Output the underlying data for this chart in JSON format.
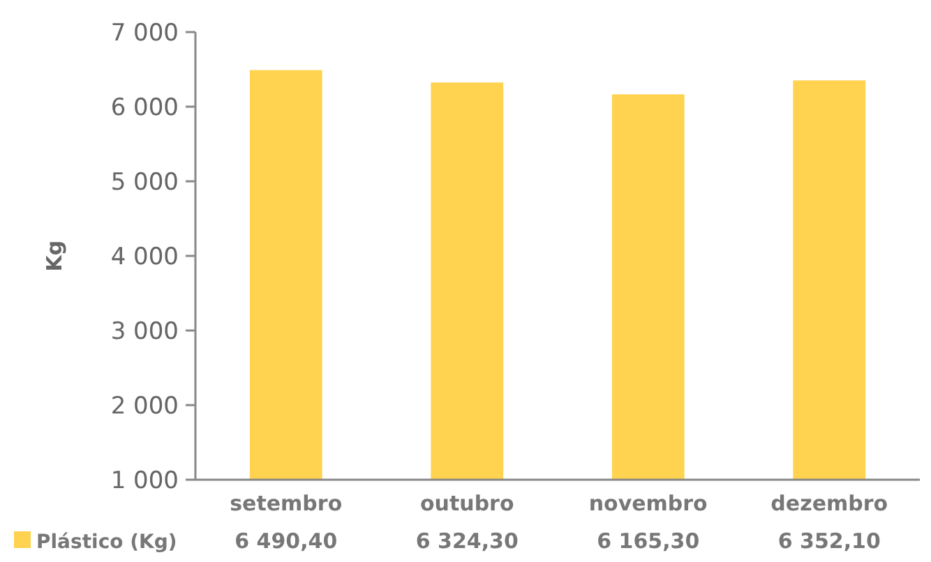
{
  "chart_data": {
    "type": "bar",
    "ylabel": "Kg",
    "categories": [
      "setembro",
      "outubro",
      "novembro",
      "dezembro"
    ],
    "series": [
      {
        "name": "Plástico (Kg)",
        "color": "#ffd34f",
        "values": [
          6490.4,
          6324.3,
          6165.3,
          6352.1
        ],
        "value_labels": [
          "6 490,40",
          "6 324,30",
          "6 165,30",
          "6 352,10"
        ]
      }
    ],
    "ylim": [
      1000,
      7000
    ],
    "yticks": [
      {
        "value": 1000,
        "label": "1 000"
      },
      {
        "value": 2000,
        "label": "2 000"
      },
      {
        "value": 3000,
        "label": "3 000"
      },
      {
        "value": 4000,
        "label": "4 000"
      },
      {
        "value": 5000,
        "label": "5 000"
      },
      {
        "value": 6000,
        "label": "6 000"
      },
      {
        "value": 7000,
        "label": "7 000"
      }
    ],
    "grid": false,
    "legend": "bottom"
  }
}
